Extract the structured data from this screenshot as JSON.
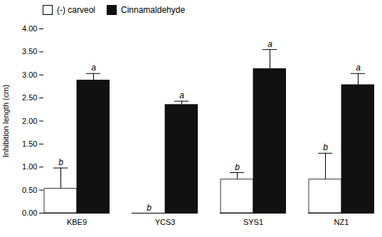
{
  "chart_data": {
    "type": "bar",
    "categories": [
      "KBE9",
      "YCS3",
      "SYS1",
      "NZ1"
    ],
    "series": [
      {
        "name": "(-) carveol",
        "color": "#ffffff",
        "values": [
          0.53,
          0.0,
          0.73,
          0.73
        ],
        "errors": [
          0.45,
          0.0,
          0.15,
          0.57
        ],
        "labels": [
          "b",
          "b",
          "b",
          "b"
        ]
      },
      {
        "name": "Cinnamaldehyde",
        "color": "#111111",
        "values": [
          2.88,
          2.35,
          3.13,
          2.78
        ],
        "errors": [
          0.15,
          0.08,
          0.42,
          0.25
        ],
        "labels": [
          "a",
          "a",
          "a",
          "a"
        ]
      }
    ],
    "ylabel": "Inhibition length (cm)",
    "ylim": [
      0,
      4.0
    ],
    "yticks": [
      {
        "value": 0,
        "label": "0.00"
      },
      {
        "value": 0.5,
        "label": "0.50"
      },
      {
        "value": 1,
        "label": "1.00"
      },
      {
        "value": 1.5,
        "label": "1.50"
      },
      {
        "value": 2,
        "label": "2.00"
      },
      {
        "value": 2.5,
        "label": "2.50"
      },
      {
        "value": 3,
        "label": "3.00"
      },
      {
        "value": 3.5,
        "label": "3.50"
      },
      {
        "value": 4,
        "label": "4.00"
      }
    ],
    "legend": "upper left",
    "grid": false
  }
}
